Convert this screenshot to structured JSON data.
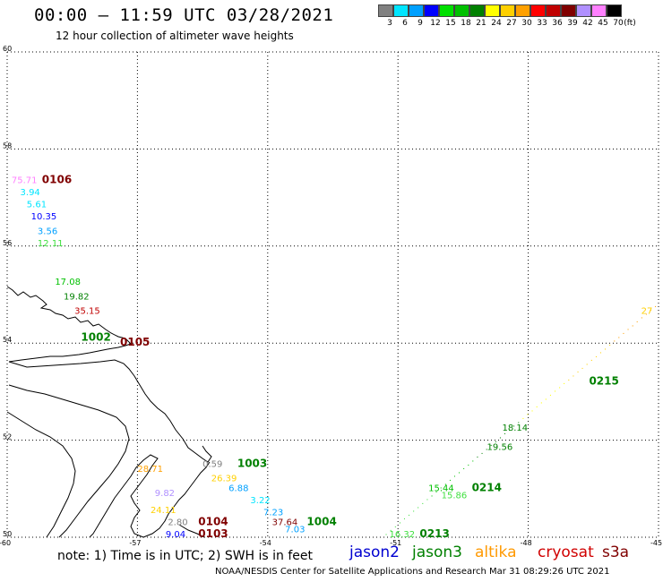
{
  "header": {
    "title": "00:00 – 11:59 UTC 03/28/2021",
    "subtitle": "12 hour collection of altimeter wave heights"
  },
  "color_scale": {
    "unit": "(ft)",
    "bins": [
      {
        "label": "3",
        "color": "#808080"
      },
      {
        "label": "6",
        "color": "#00e5ff"
      },
      {
        "label": "9",
        "color": "#00a0ff"
      },
      {
        "label": "12",
        "color": "#0000ff"
      },
      {
        "label": "15",
        "color": "#00e000"
      },
      {
        "label": "18",
        "color": "#00c000"
      },
      {
        "label": "21",
        "color": "#008000"
      },
      {
        "label": "24",
        "color": "#ffff00"
      },
      {
        "label": "27",
        "color": "#ffd000"
      },
      {
        "label": "30",
        "color": "#ffa000"
      },
      {
        "label": "33",
        "color": "#ff0000"
      },
      {
        "label": "36",
        "color": "#c00000"
      },
      {
        "label": "39",
        "color": "#800000"
      },
      {
        "label": "42",
        "color": "#b090ff"
      },
      {
        "label": "45",
        "color": "#ff80ff"
      },
      {
        "label": "70",
        "color": "#000000"
      }
    ]
  },
  "map": {
    "lat_labels": [
      "60",
      "58",
      "56",
      "54",
      "52",
      "50"
    ],
    "lon_labels": [
      "-60",
      "-57",
      "-54",
      "-51",
      "-48",
      "-45"
    ],
    "lat_range": [
      50,
      60
    ],
    "lon_range": [
      -60,
      -45
    ]
  },
  "observations": [
    {
      "text": "75.71",
      "color": "#ff80ff",
      "lon": -59.9,
      "lat": 57.3
    },
    {
      "text": "0106",
      "color": "#800000",
      "lon": -59.2,
      "lat": 57.3,
      "bold": true
    },
    {
      "text": "3.94",
      "color": "#00e5ff",
      "lon": -59.7,
      "lat": 57.05
    },
    {
      "text": "5.61",
      "color": "#00e5ff",
      "lon": -59.55,
      "lat": 56.8
    },
    {
      "text": "10.35",
      "color": "#0000ff",
      "lon": -59.45,
      "lat": 56.55
    },
    {
      "text": "3.56",
      "color": "#00a0ff",
      "lon": -59.3,
      "lat": 56.25
    },
    {
      "text": "12.11",
      "color": "#40e040",
      "lon": -59.3,
      "lat": 56.0
    },
    {
      "text": "17.08",
      "color": "#00c000",
      "lon": -58.9,
      "lat": 55.2
    },
    {
      "text": "19.82",
      "color": "#008000",
      "lon": -58.7,
      "lat": 54.9
    },
    {
      "text": "35.15",
      "color": "#c00000",
      "lon": -58.45,
      "lat": 54.6
    },
    {
      "text": "1002",
      "color": "#008000",
      "lon": -58.3,
      "lat": 54.05,
      "bold": true
    },
    {
      "text": "0105",
      "color": "#800000",
      "lon": -57.4,
      "lat": 53.95,
      "bold": true
    },
    {
      "text": "28.71",
      "color": "#ffa000",
      "lon": -57.0,
      "lat": 51.35
    },
    {
      "text": "0.59",
      "color": "#808080",
      "lon": -55.5,
      "lat": 51.45
    },
    {
      "text": "1003",
      "color": "#008000",
      "lon": -54.7,
      "lat": 51.45,
      "bold": true
    },
    {
      "text": "26.39",
      "color": "#ffd000",
      "lon": -55.3,
      "lat": 51.15
    },
    {
      "text": "6.88",
      "color": "#00a0ff",
      "lon": -54.9,
      "lat": 50.95
    },
    {
      "text": "9.82",
      "color": "#b090ff",
      "lon": -56.6,
      "lat": 50.85
    },
    {
      "text": "3.22",
      "color": "#00e5ff",
      "lon": -54.4,
      "lat": 50.7
    },
    {
      "text": "24.11",
      "color": "#ffd000",
      "lon": -56.7,
      "lat": 50.5
    },
    {
      "text": "7.23",
      "color": "#00a0ff",
      "lon": -54.1,
      "lat": 50.45
    },
    {
      "text": "2.80",
      "color": "#808080",
      "lon": -56.3,
      "lat": 50.25
    },
    {
      "text": "0104",
      "color": "#800000",
      "lon": -55.6,
      "lat": 50.25,
      "bold": true
    },
    {
      "text": "37.64",
      "color": "#800000",
      "lon": -53.9,
      "lat": 50.25
    },
    {
      "text": "1004",
      "color": "#008000",
      "lon": -53.1,
      "lat": 50.25,
      "bold": true
    },
    {
      "text": "9.04",
      "color": "#0000ff",
      "lon": -56.35,
      "lat": 50.0
    },
    {
      "text": "0103",
      "color": "#800000",
      "lon": -55.6,
      "lat": 50.0,
      "bold": true
    },
    {
      "text": "7.03",
      "color": "#00a0ff",
      "lon": -53.6,
      "lat": 50.1
    },
    {
      "text": "16.32",
      "color": "#40e040",
      "lon": -51.2,
      "lat": 50.0
    },
    {
      "text": "0213",
      "color": "#008000",
      "lon": -50.5,
      "lat": 50.0,
      "bold": true
    },
    {
      "text": "15.86",
      "color": "#40e040",
      "lon": -50.0,
      "lat": 50.8
    },
    {
      "text": "15.44",
      "color": "#00c000",
      "lon": -50.3,
      "lat": 50.95
    },
    {
      "text": "0214",
      "color": "#008000",
      "lon": -49.3,
      "lat": 50.95,
      "bold": true
    },
    {
      "text": "19.56",
      "color": "#008000",
      "lon": -48.95,
      "lat": 51.8
    },
    {
      "text": "18.14",
      "color": "#008000",
      "lon": -48.6,
      "lat": 52.2
    },
    {
      "text": "0215",
      "color": "#008000",
      "lon": -46.6,
      "lat": 53.15,
      "bold": true
    },
    {
      "text": "27",
      "color": "#ffd000",
      "lon": -45.4,
      "lat": 54.6
    }
  ],
  "notes": {
    "note": "note: 1) Time is in UTC; 2) SWH is in feet",
    "satellites": [
      {
        "name": "jason2",
        "color": "#0000d0"
      },
      {
        "name": "jason3",
        "color": "#008000"
      },
      {
        "name": "altika",
        "color": "#ff9900"
      },
      {
        "name": "cryosat",
        "color": "#d00000"
      },
      {
        "name": "s3a",
        "color": "#800000"
      }
    ],
    "footer": "NOAA/NESDIS Center for Satellite Applications and Research    Mar 31 08:29:26 UTC 2021"
  }
}
